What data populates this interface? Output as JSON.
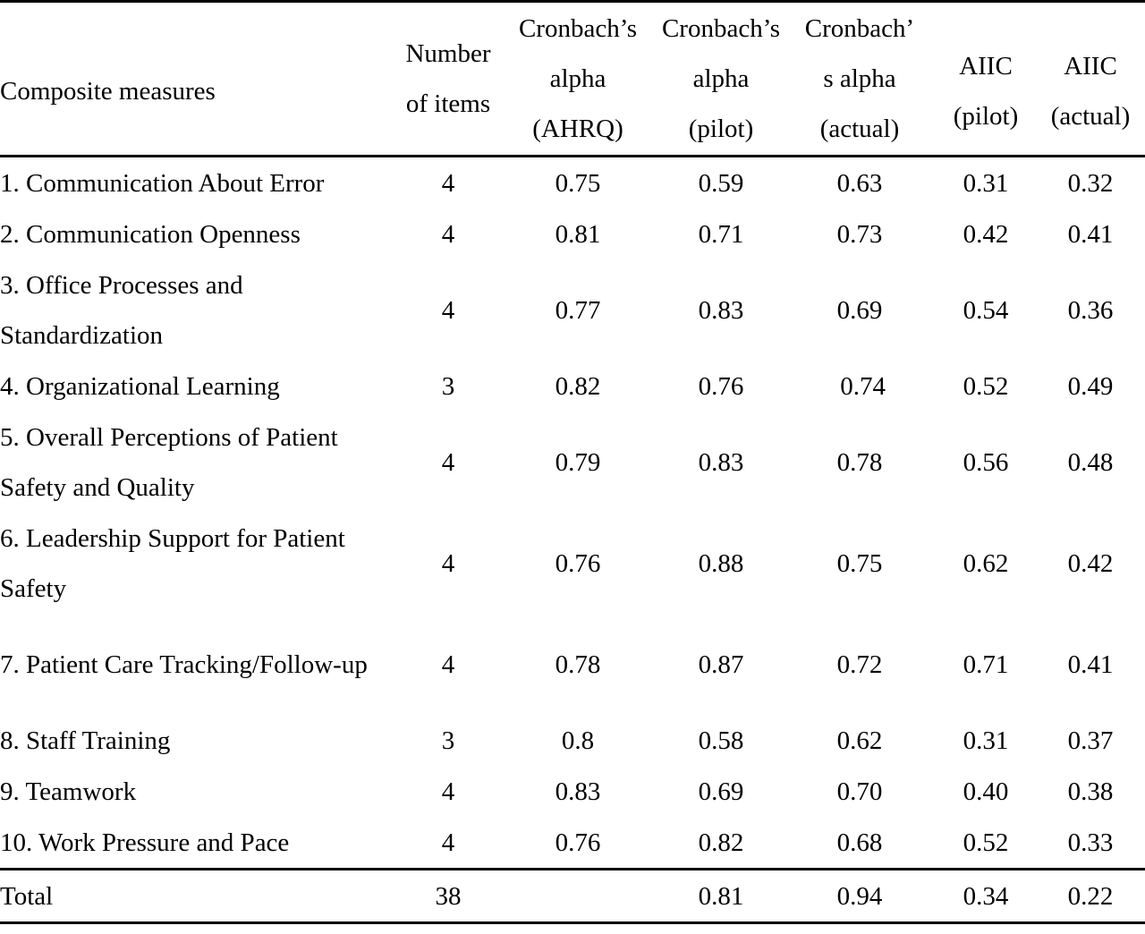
{
  "headers": {
    "col0": "Composite measures",
    "col1": [
      "Number",
      "of items"
    ],
    "col2": [
      "Cronbach’s",
      "alpha",
      "(AHRQ)"
    ],
    "col3": [
      "Cronbach’s",
      "alpha",
      "(pilot)"
    ],
    "col4": [
      "Cronbach’",
      "s alpha",
      "(actual)"
    ],
    "col5": [
      "AIIC",
      "(pilot)"
    ],
    "col6": [
      "AIIC",
      "(actual)"
    ]
  },
  "rows": [
    {
      "name": "1. Communication About Error",
      "items": "4",
      "ahrq": "0.75",
      "pilot": "0.59",
      "actual": "0.63",
      "aiic_pilot": "0.31",
      "aiic_actual": "0.32"
    },
    {
      "name": "2. Communication Openness",
      "items": "4",
      "ahrq": "0.81",
      "pilot": "0.71",
      "actual": "0.73",
      "aiic_pilot": "0.42",
      "aiic_actual": "0.41"
    },
    {
      "name": "3. Office Processes and Standardization",
      "items": "4",
      "ahrq": "0.77",
      "pilot": "0.83",
      "actual": "0.69",
      "aiic_pilot": "0.54",
      "aiic_actual": "0.36"
    },
    {
      "name": "4. Organizational Learning",
      "items": "3",
      "ahrq": "0.82",
      "pilot": "0.76",
      "actual": " 0.74",
      "aiic_pilot": "0.52",
      "aiic_actual": "0.49"
    },
    {
      "name": "5. Overall Perceptions of Patient Safety and Quality",
      "items": "4",
      "ahrq": "0.79",
      "pilot": "0.83",
      "actual": "0.78",
      "aiic_pilot": "0.56",
      "aiic_actual": "0.48"
    },
    {
      "name": "6. Leadership Support for Patient Safety",
      "items": "4",
      "ahrq": "0.76",
      "pilot": "0.88",
      "actual": "0.75",
      "aiic_pilot": "0.62",
      "aiic_actual": "0.42"
    },
    {
      "name": "7. Patient Care Tracking/Follow-up",
      "items": "4",
      "ahrq": "0.78",
      "pilot": "0.87",
      "actual": "0.72",
      "aiic_pilot": "0.71",
      "aiic_actual": "0.41"
    },
    {
      "name": "8. Staff Training",
      "items": "3",
      "ahrq": "0.8",
      "pilot": "0.58",
      "actual": "0.62",
      "aiic_pilot": "0.31",
      "aiic_actual": "0.37"
    },
    {
      "name": "9. Teamwork",
      "items": "4",
      "ahrq": "0.83",
      "pilot": "0.69",
      "actual": "0.70",
      "aiic_pilot": "0.40",
      "aiic_actual": "0.38"
    },
    {
      "name": "10. Work Pressure and Pace",
      "items": "4",
      "ahrq": "0.76",
      "pilot": "0.82",
      "actual": "0.68",
      "aiic_pilot": "0.52",
      "aiic_actual": "0.33"
    }
  ],
  "total": {
    "name": "Total",
    "items": "38",
    "ahrq": "",
    "pilot": "0.81",
    "actual": "0.94",
    "aiic_pilot": "0.34",
    "aiic_actual": "0.22"
  }
}
